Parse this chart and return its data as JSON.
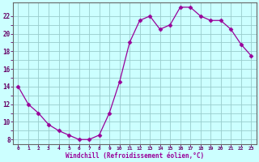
{
  "x": [
    0,
    1,
    2,
    3,
    4,
    5,
    6,
    7,
    8,
    9,
    10,
    11,
    12,
    13,
    14,
    15,
    16,
    17,
    18,
    19,
    20,
    21,
    22,
    23
  ],
  "y": [
    14,
    12,
    11,
    9.7,
    9,
    8.5,
    8,
    8,
    8.5,
    11,
    14.5,
    19,
    21.5,
    22,
    20.5,
    21,
    23,
    23,
    22,
    21.5,
    21.5,
    20.5,
    18.8,
    17.5
  ],
  "line_color": "#990099",
  "marker": "D",
  "marker_size": 2.5,
  "bg_color": "#ccffff",
  "grid_color": "#99cccc",
  "xlabel": "Windchill (Refroidissement éolien,°C)",
  "xlabel_color": "#990099",
  "xtick_labels": [
    "0",
    "1",
    "2",
    "3",
    "4",
    "5",
    "6",
    "7",
    "8",
    "9",
    "10",
    "11",
    "12",
    "13",
    "14",
    "15",
    "16",
    "17",
    "18",
    "19",
    "20",
    "21",
    "22",
    "23"
  ],
  "ylim": [
    7.5,
    23.5
  ],
  "xlim": [
    -0.5,
    23.5
  ],
  "yticks_major": [
    8,
    10,
    12,
    14,
    16,
    18,
    20,
    22
  ],
  "yticks_minor": [
    9,
    11,
    13,
    15,
    17,
    19,
    21
  ],
  "tick_color": "#660066",
  "spine_color": "#666666"
}
